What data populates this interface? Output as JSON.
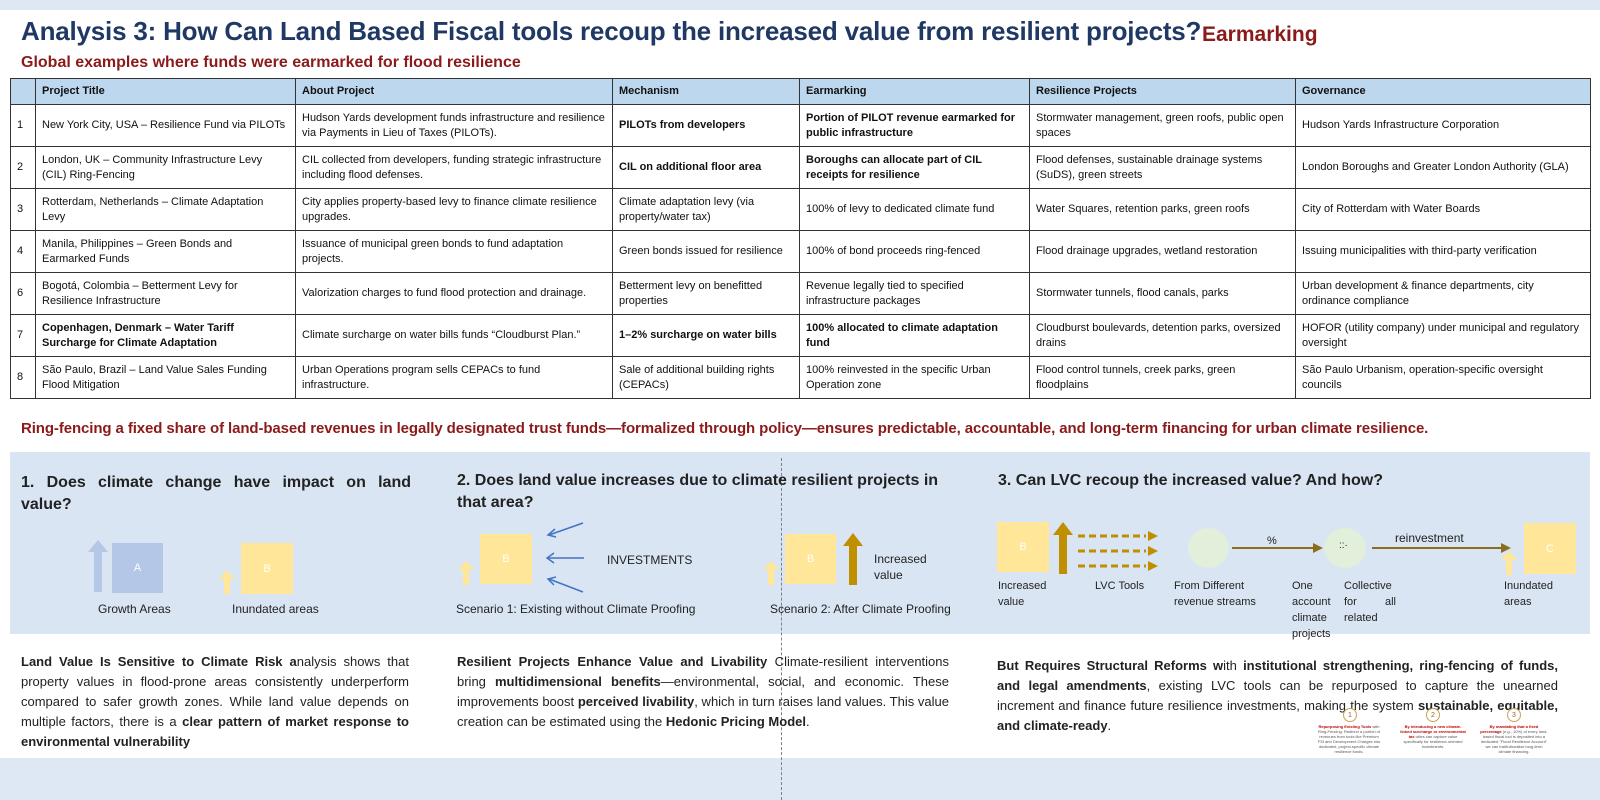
{
  "header": {
    "title": "Analysis 3: How Can Land Based Fiscal tools recoup the increased value from resilient projects?",
    "badge": "Earmarking",
    "subtitle": "Global examples where funds were earmarked for flood resilience"
  },
  "table": {
    "columns": [
      "",
      "Project Title",
      "About Project",
      "Mechanism",
      "Earmarking",
      "Resilience Projects",
      "Governance"
    ],
    "rows": [
      {
        "num": "1",
        "title": "New York City, USA – Resilience Fund via PILOTs",
        "about": "Hudson Yards development funds infrastructure and resilience via Payments in Lieu of Taxes (PILOTs).",
        "mechanism": "PILOTs from developers",
        "earmarking": "Portion of PILOT revenue earmarked for public infrastructure",
        "projects": "Stormwater management, green roofs, public open spaces",
        "governance": "Hudson Yards Infrastructure Corporation"
      },
      {
        "num": "2",
        "title": "London, UK – Community Infrastructure Levy (CIL) Ring-Fencing",
        "about": "CIL collected from developers, funding strategic infrastructure including flood defenses.",
        "mechanism": "CIL on additional floor area",
        "earmarking": "Boroughs can allocate part of CIL receipts for resilience",
        "projects": "Flood defenses, sustainable drainage systems (SuDS), green streets",
        "governance": "London Boroughs and Greater London Authority (GLA)"
      },
      {
        "num": "3",
        "title": "Rotterdam, Netherlands – Climate Adaptation Levy",
        "about": "City applies property-based levy to finance climate resilience upgrades.",
        "mechanism": "Climate adaptation levy (via property/water tax)",
        "earmarking": "100% of levy to dedicated climate fund",
        "projects": "Water Squares, retention parks, green roofs",
        "governance": "City of Rotterdam with Water Boards"
      },
      {
        "num": "4",
        "title": "Manila, Philippines – Green Bonds and Earmarked Funds",
        "about": "Issuance of municipal green bonds to fund adaptation projects.",
        "mechanism": "Green bonds issued for resilience",
        "earmarking": "100% of bond proceeds ring-fenced",
        "projects": "Flood drainage upgrades, wetland restoration",
        "governance": "Issuing municipalities with third-party verification"
      },
      {
        "num": "6",
        "title": "Bogotá, Colombia – Betterment Levy for Resilience Infrastructure",
        "about": "Valorization charges to fund flood protection and drainage.",
        "mechanism": "Betterment levy on benefitted properties",
        "earmarking": "Revenue legally tied to specified infrastructure packages",
        "projects": "Stormwater tunnels, flood canals, parks",
        "governance": "Urban development & finance departments, city ordinance compliance"
      },
      {
        "num": "7",
        "title": "Copenhagen, Denmark – Water Tariff Surcharge for Climate Adaptation",
        "about": "Climate surcharge on water bills funds “Cloudburst Plan.”",
        "mechanism": "1–2% surcharge on water bills",
        "earmarking": "100% allocated to climate adaptation fund",
        "projects": "Cloudburst boulevards, detention parks, oversized drains",
        "governance": "HOFOR (utility company) under municipal and regulatory oversight"
      },
      {
        "num": "8",
        "title": "São Paulo, Brazil – Land Value Sales Funding Flood Mitigation",
        "about": "Urban Operations program sells CEPACs to fund infrastructure.",
        "mechanism": "Sale of additional building rights (CEPACs)",
        "earmarking": "100% reinvested in the specific Urban Operation zone",
        "projects": "Flood control tunnels, creek parks, green floodplains",
        "governance": "São Paulo Urbanism, operation-specific oversight councils"
      }
    ]
  },
  "ring_text": "Ring-fencing a fixed share of land-based revenues in legally designated trust funds—formalized through policy—ensures predictable, accountable, and long-term financing for urban climate resilience.",
  "section1": {
    "question": "1. Does climate change have impact on land value?",
    "box_a": "A",
    "box_b": "B",
    "label_growth": "Growth Areas",
    "label_inundated": "Inundated areas",
    "para_lead": "Land Value Is Sensitive to Climate Risk a",
    "para_mid": "nalysis shows that property values in flood-prone areas consistently underperform compared to safer growth zones. While land value depends on multiple factors, there is a ",
    "para_bold": "clear pattern of market response to environmental vulnerability"
  },
  "section2": {
    "question": "2. Does land value increases due to climate resilient projects in that area?",
    "box_b": "B",
    "investments": "INVESTMENTS",
    "increased": "Increased value",
    "scenario1": "Scenario 1: Existing without Climate Proofing",
    "scenario2": "Scenario 2: After Climate Proofing",
    "para_lead": "Resilient Projects Enhance Value and Livability",
    "para_a": " Climate-resilient interventions bring ",
    "para_b": "multidimensional benefits",
    "para_c": "—environmental, social, and economic. These improvements boost ",
    "para_d": "perceived livability",
    "para_e": ", which in turn raises land values. This value creation can be estimated using the ",
    "para_f": "Hedonic Pricing Model",
    "para_g": "."
  },
  "section3": {
    "question": "3. Can LVC recoup the increased value? And how?",
    "box_b": "B",
    "box_c": "C",
    "percent": "%",
    "reinvestment": "reinvestment",
    "dots": "::·",
    "label_increased": "Increased value",
    "label_lvc": "LVC Tools",
    "label_from": "From Different revenue streams",
    "label_one": "One account climate projects",
    "label_collective": "Collective for all related",
    "label_inundated": "Inundated areas",
    "para_lead": "But Requires Structural Reforms w",
    "para_a": "ith ",
    "para_b": "institutional strengthening, ring-fencing of funds, and legal amendments",
    "para_c": ", existing LVC tools can be repurposed to capture the unearned increment and finance future resilience investments, making the system ",
    "para_d": "sustainable, equitable, and climate-ready",
    "para_e": ".",
    "mini": [
      {
        "n": "1",
        "red": "Repurposing Existing Tools",
        "text": "with Ring-Fencing: Redirect a portion of revenues from tools like Premium FSI and Development Charges into dedicated, project-specific climate resilience funds."
      },
      {
        "n": "2",
        "red": "By introducing a new climate-linked surcharge or environmental tax",
        "text": "cities can capture value specifically for resilience-oriented investments."
      },
      {
        "n": "3",
        "red": "By mandating that a fixed percentage",
        "text": "(e.g., 10%) of every land-based fiscal tool is deposited into a dedicated \"Flood Resilience Account\" we can institutionalise long-term climate financing."
      }
    ]
  },
  "colors": {
    "title": "#1f3864",
    "accent_red": "#8b1a1a",
    "header_fill": "#bdd7ee",
    "panel": "#dae5f3",
    "yellow": "#ffe699",
    "blue": "#b4c7e7",
    "olive": "#bf8f00"
  }
}
